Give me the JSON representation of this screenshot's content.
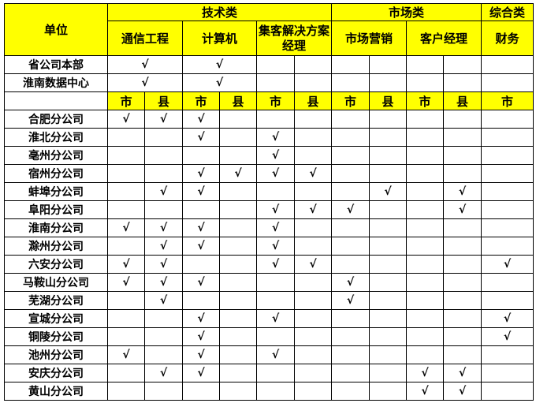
{
  "header": {
    "unit": "单位",
    "groups": [
      {
        "label": "技术类",
        "subs": [
          "通信工程",
          "计算机",
          "集客解决方案经理"
        ]
      },
      {
        "label": "市场类",
        "subs": [
          "市场营销",
          "客户经理"
        ]
      },
      {
        "label": "综合类",
        "subs": [
          "财务"
        ]
      }
    ],
    "sub_levels": [
      "市",
      "县",
      "市",
      "县",
      "市",
      "县",
      "市",
      "县",
      "市",
      "县",
      "市"
    ]
  },
  "check_mark": "√",
  "hq_rows": [
    {
      "unit": "省公司本部",
      "tongxin": "√",
      "jisuanji": "√"
    },
    {
      "unit": "淮南数据中心",
      "tongxin": "√",
      "jisuanji": "√"
    }
  ],
  "rows": [
    {
      "unit": "合肥分公司",
      "checks": [
        1,
        1,
        1,
        0,
        0,
        0,
        0,
        0,
        0,
        0,
        0
      ]
    },
    {
      "unit": "淮北分公司",
      "checks": [
        0,
        0,
        1,
        0,
        1,
        0,
        0,
        0,
        0,
        0,
        0
      ]
    },
    {
      "unit": "亳州分公司",
      "checks": [
        0,
        0,
        0,
        0,
        1,
        0,
        0,
        0,
        0,
        0,
        0
      ]
    },
    {
      "unit": "宿州分公司",
      "checks": [
        0,
        0,
        1,
        1,
        1,
        1,
        0,
        0,
        0,
        0,
        0
      ]
    },
    {
      "unit": "蚌埠分公司",
      "checks": [
        0,
        1,
        1,
        0,
        0,
        0,
        0,
        1,
        0,
        1,
        0
      ]
    },
    {
      "unit": "阜阳分公司",
      "checks": [
        0,
        0,
        0,
        0,
        1,
        1,
        1,
        0,
        0,
        1,
        0
      ]
    },
    {
      "unit": "淮南分公司",
      "checks": [
        1,
        1,
        1,
        0,
        1,
        0,
        0,
        0,
        0,
        0,
        0
      ]
    },
    {
      "unit": "滁州分公司",
      "checks": [
        0,
        1,
        1,
        0,
        1,
        0,
        0,
        0,
        0,
        0,
        0
      ]
    },
    {
      "unit": "六安分公司",
      "checks": [
        1,
        1,
        0,
        0,
        1,
        1,
        0,
        0,
        0,
        0,
        1
      ]
    },
    {
      "unit": "马鞍山分公司",
      "checks": [
        1,
        1,
        1,
        0,
        0,
        0,
        1,
        0,
        0,
        0,
        0
      ]
    },
    {
      "unit": "芜湖分公司",
      "checks": [
        0,
        1,
        0,
        0,
        0,
        0,
        1,
        0,
        0,
        0,
        0
      ]
    },
    {
      "unit": "宣城分公司",
      "checks": [
        0,
        0,
        1,
        0,
        1,
        0,
        0,
        0,
        0,
        0,
        1
      ]
    },
    {
      "unit": "铜陵分公司",
      "checks": [
        0,
        0,
        1,
        0,
        0,
        0,
        0,
        0,
        0,
        0,
        1
      ]
    },
    {
      "unit": "池州分公司",
      "checks": [
        1,
        0,
        1,
        0,
        1,
        0,
        0,
        0,
        0,
        0,
        0
      ]
    },
    {
      "unit": "安庆分公司",
      "checks": [
        0,
        1,
        1,
        0,
        0,
        0,
        0,
        0,
        1,
        1,
        0
      ]
    },
    {
      "unit": "黄山分公司",
      "checks": [
        0,
        0,
        0,
        0,
        0,
        0,
        0,
        0,
        1,
        1,
        0
      ]
    }
  ],
  "colors": {
    "header_bg": "#ffff00",
    "border": "#000000"
  }
}
